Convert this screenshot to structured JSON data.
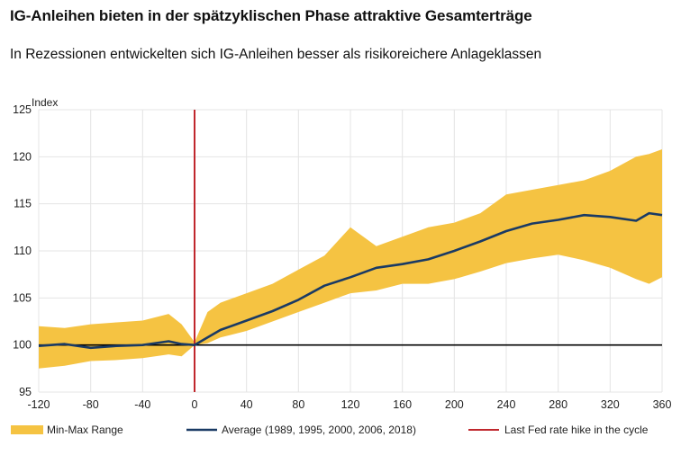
{
  "header": {
    "title": "IG-Anleihen bieten in der spätzyklischen Phase attraktive Gesamterträge",
    "subtitle": "In Rezessionen entwickelten sich IG-Anleihen besser als risikoreichere Anlageklassen"
  },
  "chart_data": {
    "type": "area",
    "ylabel": "Index",
    "xlim": [
      -120,
      360
    ],
    "ylim": [
      95,
      125
    ],
    "xticks": [
      -120,
      -80,
      -40,
      0,
      40,
      80,
      120,
      160,
      200,
      240,
      280,
      320,
      360
    ],
    "yticks": [
      95,
      100,
      105,
      110,
      115,
      120,
      125
    ],
    "grid": true,
    "baseline": 100,
    "event_line_x": 0,
    "legend_position": "bottom",
    "colors": {
      "range": "#f5c342",
      "average": "#1a3a64",
      "event": "#c0272d",
      "baseline": "#000000"
    },
    "x": [
      -120,
      -100,
      -80,
      -60,
      -40,
      -20,
      -10,
      0,
      10,
      20,
      40,
      60,
      80,
      100,
      120,
      140,
      160,
      180,
      200,
      220,
      240,
      260,
      280,
      300,
      320,
      340,
      350,
      360
    ],
    "series": [
      {
        "name": "Min-Max Range",
        "role": "min",
        "values": [
          97.5,
          97.8,
          98.3,
          98.4,
          98.6,
          99.0,
          98.8,
          100.0,
          100.2,
          100.8,
          101.5,
          102.5,
          103.5,
          104.5,
          105.5,
          105.8,
          106.5,
          106.5,
          107.0,
          107.8,
          108.7,
          109.2,
          109.6,
          109.0,
          108.2,
          107.0,
          106.5,
          107.2
        ]
      },
      {
        "name": "Min-Max Range",
        "role": "max",
        "values": [
          102.0,
          101.8,
          102.2,
          102.4,
          102.6,
          103.3,
          102.2,
          100.3,
          103.5,
          104.5,
          105.5,
          106.5,
          108.0,
          109.5,
          112.5,
          110.5,
          111.5,
          112.5,
          113.0,
          114.0,
          116.0,
          116.5,
          117.0,
          117.5,
          118.5,
          120.0,
          120.3,
          120.8
        ]
      },
      {
        "name": "Average (1989, 1995, 2000, 2006, 2018)",
        "role": "average",
        "values": [
          99.9,
          100.1,
          99.7,
          99.9,
          100.0,
          100.4,
          100.1,
          100.0,
          100.8,
          101.6,
          102.6,
          103.6,
          104.8,
          106.3,
          107.2,
          108.2,
          108.6,
          109.1,
          110.0,
          111.0,
          112.1,
          112.9,
          113.3,
          113.8,
          113.6,
          113.2,
          114.0,
          113.8
        ]
      }
    ],
    "legend": [
      {
        "label": "Min-Max Range",
        "kind": "swatch"
      },
      {
        "label": "Average (1989, 1995, 2000, 2006, 2018)",
        "kind": "line-average"
      },
      {
        "label": "Last Fed rate hike in the cycle",
        "kind": "line-event"
      }
    ]
  }
}
